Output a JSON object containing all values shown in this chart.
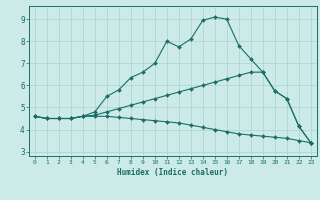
{
  "xlabel": "Humidex (Indice chaleur)",
  "xlim": [
    -0.5,
    23.5
  ],
  "ylim": [
    2.8,
    9.6
  ],
  "yticks": [
    3,
    4,
    5,
    6,
    7,
    8,
    9
  ],
  "xticks": [
    0,
    1,
    2,
    3,
    4,
    5,
    6,
    7,
    8,
    9,
    10,
    11,
    12,
    13,
    14,
    15,
    16,
    17,
    18,
    19,
    20,
    21,
    22,
    23
  ],
  "bg_color": "#cceae7",
  "line_color": "#1a6e65",
  "grid_color": "#aad4d0",
  "lines": [
    {
      "x": [
        0,
        1,
        2,
        3,
        4,
        5,
        6,
        7,
        8,
        9,
        10,
        11,
        12,
        13,
        14,
        15,
        16,
        17,
        18,
        19,
        20,
        21,
        22,
        23
      ],
      "y": [
        4.6,
        4.5,
        4.5,
        4.5,
        4.6,
        4.8,
        5.5,
        5.8,
        6.35,
        6.6,
        7.0,
        8.0,
        7.75,
        8.1,
        8.95,
        9.1,
        9.0,
        7.8,
        7.2,
        6.6,
        5.75,
        5.4,
        4.15,
        3.4
      ]
    },
    {
      "x": [
        0,
        1,
        2,
        3,
        4,
        5,
        6,
        7,
        8,
        9,
        10,
        11,
        12,
        13,
        14,
        15,
        16,
        17,
        18,
        19,
        20,
        21,
        22,
        23
      ],
      "y": [
        4.6,
        4.5,
        4.5,
        4.5,
        4.6,
        4.65,
        4.8,
        4.95,
        5.1,
        5.25,
        5.4,
        5.55,
        5.7,
        5.85,
        6.0,
        6.15,
        6.3,
        6.45,
        6.6,
        6.6,
        5.75,
        5.4,
        4.15,
        3.4
      ]
    },
    {
      "x": [
        0,
        1,
        2,
        3,
        4,
        5,
        6,
        7,
        8,
        9,
        10,
        11,
        12,
        13,
        14,
        15,
        16,
        17,
        18,
        19,
        20,
        21,
        22,
        23
      ],
      "y": [
        4.6,
        4.5,
        4.5,
        4.5,
        4.6,
        4.6,
        4.6,
        4.55,
        4.5,
        4.45,
        4.4,
        4.35,
        4.3,
        4.2,
        4.1,
        4.0,
        3.9,
        3.8,
        3.75,
        3.7,
        3.65,
        3.6,
        3.5,
        3.4
      ]
    }
  ]
}
